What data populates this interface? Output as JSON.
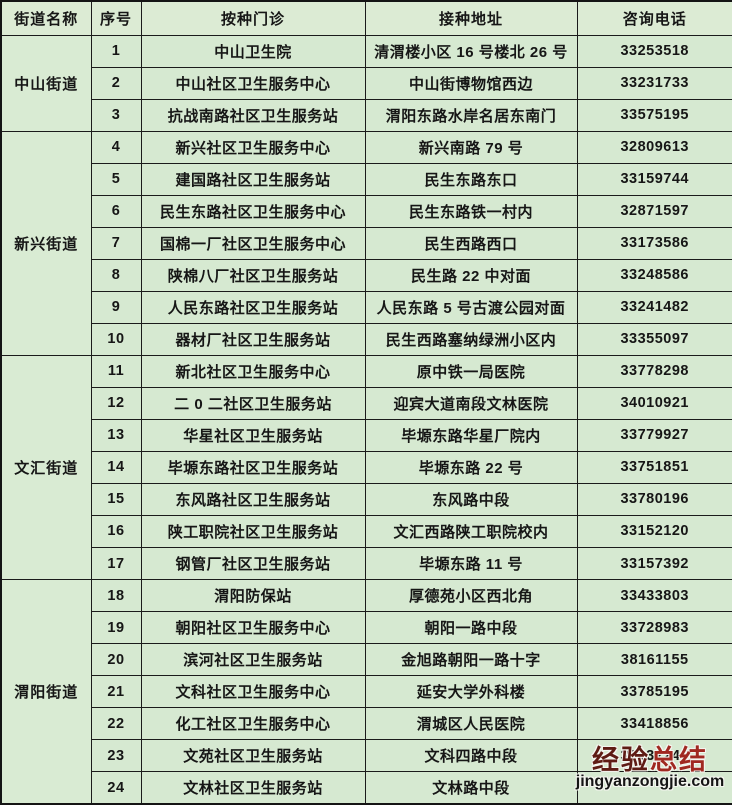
{
  "table": {
    "columns": [
      "街道名称",
      "序号",
      "按种门诊",
      "接种地址",
      "咨询电话"
    ],
    "groups": [
      {
        "name": "中山街道",
        "rows": [
          {
            "no": "1",
            "clinic": "中山卫生院",
            "address": "清渭楼小区 16 号楼北 26 号",
            "phone": "33253518"
          },
          {
            "no": "2",
            "clinic": "中山社区卫生服务中心",
            "address": "中山街博物馆西边",
            "phone": "33231733"
          },
          {
            "no": "3",
            "clinic": "抗战南路社区卫生服务站",
            "address": "渭阳东路水岸名居东南门",
            "phone": "33575195"
          }
        ]
      },
      {
        "name": "新兴街道",
        "rows": [
          {
            "no": "4",
            "clinic": "新兴社区卫生服务中心",
            "address": "新兴南路 79 号",
            "phone": "32809613"
          },
          {
            "no": "5",
            "clinic": "建国路社区卫生服务站",
            "address": "民生东路东口",
            "phone": "33159744"
          },
          {
            "no": "6",
            "clinic": "民生东路社区卫生服务中心",
            "address": "民生东路铁一村内",
            "phone": "32871597"
          },
          {
            "no": "7",
            "clinic": "国棉一厂社区卫生服务中心",
            "address": "民生西路西口",
            "phone": "33173586"
          },
          {
            "no": "8",
            "clinic": "陕棉八厂社区卫生服务站",
            "address": "民生路 22 中对面",
            "phone": "33248586"
          },
          {
            "no": "9",
            "clinic": "人民东路社区卫生服务站",
            "address": "人民东路 5 号古渡公园对面",
            "phone": "33241482"
          },
          {
            "no": "10",
            "clinic": "器材厂社区卫生服务站",
            "address": "民生西路塞纳绿洲小区内",
            "phone": "33355097"
          }
        ]
      },
      {
        "name": "文汇街道",
        "rows": [
          {
            "no": "11",
            "clinic": "新北社区卫生服务中心",
            "address": "原中铁一局医院",
            "phone": "33778298"
          },
          {
            "no": "12",
            "clinic": "二 0 二社区卫生服务站",
            "address": "迎宾大道南段文林医院",
            "phone": "34010921"
          },
          {
            "no": "13",
            "clinic": "华星社区卫生服务站",
            "address": "毕塬东路华星厂院内",
            "phone": "33779927"
          },
          {
            "no": "14",
            "clinic": "毕塬东路社区卫生服务站",
            "address": "毕塬东路 22 号",
            "phone": "33751851"
          },
          {
            "no": "15",
            "clinic": "东风路社区卫生服务站",
            "address": "东风路中段",
            "phone": "33780196"
          },
          {
            "no": "16",
            "clinic": "陕工职院社区卫生服务站",
            "address": "文汇西路陕工职院校内",
            "phone": "33152120"
          },
          {
            "no": "17",
            "clinic": "钢管厂社区卫生服务站",
            "address": "毕塬东路 11 号",
            "phone": "33157392"
          }
        ]
      },
      {
        "name": "渭阳街道",
        "rows": [
          {
            "no": "18",
            "clinic": "渭阳防保站",
            "address": "厚德苑小区西北角",
            "phone": "33433803"
          },
          {
            "no": "19",
            "clinic": "朝阳社区卫生服务中心",
            "address": "朝阳一路中段",
            "phone": "33728983"
          },
          {
            "no": "20",
            "clinic": "滨河社区卫生服务站",
            "address": "金旭路朝阳一路十字",
            "phone": "38161155"
          },
          {
            "no": "21",
            "clinic": "文科社区卫生服务中心",
            "address": "延安大学外科楼",
            "phone": "33785195"
          },
          {
            "no": "22",
            "clinic": "化工社区卫生服务中心",
            "address": "渭城区人民医院",
            "phone": "33418856"
          },
          {
            "no": "23",
            "clinic": "文苑社区卫生服务站",
            "address": "文科四路中段",
            "phone": "33132248"
          },
          {
            "no": "24",
            "clinic": "文林社区卫生服务站",
            "address": "文林路中段",
            "phone": ""
          }
        ]
      }
    ]
  },
  "watermark": {
    "line1a": "经验",
    "line1b": "总结",
    "line2": "jingyanzongjie.com",
    "color_dark_red": "#5e1b14",
    "color_red": "#a02820"
  },
  "colors": {
    "cell_background": "#d6e9d1",
    "header_background": "#dcebd4",
    "border": "#1b1b1b",
    "text": "#161616"
  }
}
